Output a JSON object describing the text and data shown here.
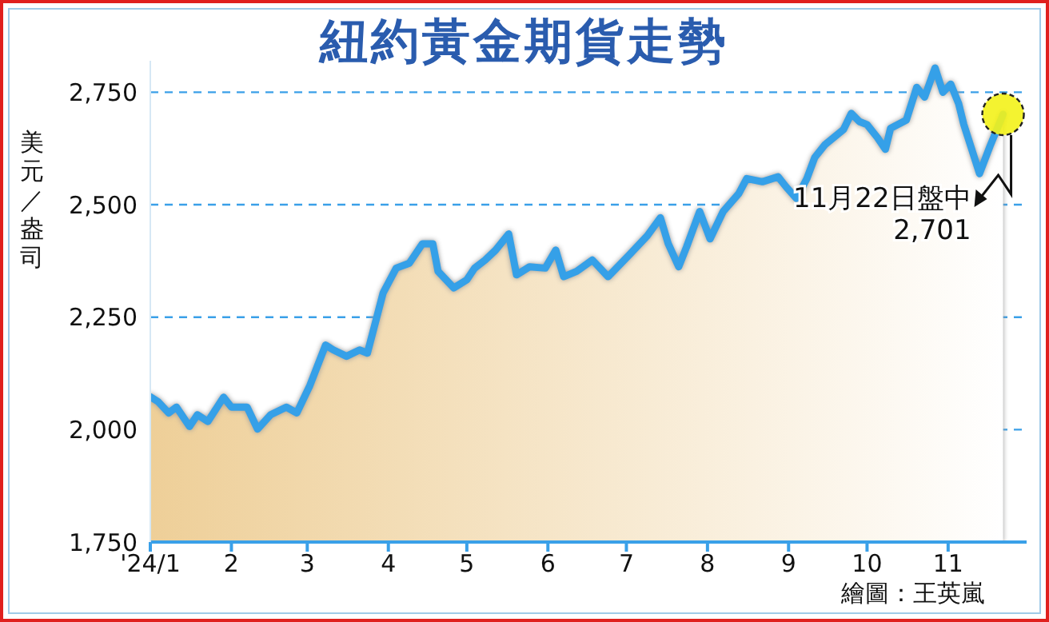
{
  "chart_data": {
    "type": "area",
    "title": "紐約黃金期貨走勢",
    "ylabel": "美元／盎司",
    "x": [
      "2024-01-01",
      "2024-01-04",
      "2024-01-08",
      "2024-01-11",
      "2024-01-16",
      "2024-01-19",
      "2024-01-23",
      "2024-01-29",
      "2024-02-01",
      "2024-02-07",
      "2024-02-11",
      "2024-02-16",
      "2024-02-22",
      "2024-02-26",
      "2024-03-02",
      "2024-03-08",
      "2024-03-11",
      "2024-03-16",
      "2024-03-21",
      "2024-03-24",
      "2024-03-30",
      "2024-04-04",
      "2024-04-09",
      "2024-04-14",
      "2024-04-18",
      "2024-04-20",
      "2024-04-26",
      "2024-05-01",
      "2024-05-04",
      "2024-05-08",
      "2024-05-12",
      "2024-05-17",
      "2024-05-20",
      "2024-05-25",
      "2024-05-31",
      "2024-06-04",
      "2024-06-07",
      "2024-06-12",
      "2024-06-18",
      "2024-06-24",
      "2024-07-02",
      "2024-07-09",
      "2024-07-14",
      "2024-07-17",
      "2024-07-21",
      "2024-07-24",
      "2024-07-29",
      "2024-08-02",
      "2024-08-07",
      "2024-08-13",
      "2024-08-16",
      "2024-08-22",
      "2024-08-28",
      "2024-08-31",
      "2024-09-04",
      "2024-09-08",
      "2024-09-11",
      "2024-09-15",
      "2024-09-22",
      "2024-09-25",
      "2024-09-28",
      "2024-10-01",
      "2024-10-05",
      "2024-10-08",
      "2024-10-10",
      "2024-10-16",
      "2024-10-20",
      "2024-10-23",
      "2024-10-27",
      "2024-10-30",
      "2024-11-02",
      "2024-11-05",
      "2024-11-07",
      "2024-11-13",
      "2024-11-17",
      "2024-11-22"
    ],
    "series": [
      {
        "color": "#35a0e8",
        "values": [
          2073,
          2062,
          2037,
          2050,
          2007,
          2033,
          2018,
          2072,
          2050,
          2050,
          2001,
          2033,
          2050,
          2037,
          2098,
          2188,
          2177,
          2163,
          2177,
          2170,
          2304,
          2359,
          2370,
          2413,
          2413,
          2352,
          2315,
          2333,
          2359,
          2377,
          2399,
          2435,
          2344,
          2362,
          2359,
          2399,
          2340,
          2352,
          2377,
          2340,
          2388,
          2431,
          2471,
          2413,
          2362,
          2406,
          2485,
          2424,
          2485,
          2525,
          2558,
          2551,
          2562,
          2540,
          2514,
          2558,
          2605,
          2634,
          2667,
          2703,
          2685,
          2678,
          2649,
          2623,
          2670,
          2688,
          2761,
          2739,
          2804,
          2750,
          2768,
          2725,
          2678,
          2569,
          2630,
          2701
        ]
      }
    ],
    "xlim": [
      "2024-01-01",
      "2024-12-01"
    ],
    "xticks": [
      {
        "value": "2024-01-01",
        "label": "'24/1"
      },
      {
        "value": "2024-02-01",
        "label": "2"
      },
      {
        "value": "2024-03-01",
        "label": "3"
      },
      {
        "value": "2024-04-01",
        "label": "4"
      },
      {
        "value": "2024-05-01",
        "label": "5"
      },
      {
        "value": "2024-06-01",
        "label": "6"
      },
      {
        "value": "2024-07-01",
        "label": "7"
      },
      {
        "value": "2024-08-01",
        "label": "8"
      },
      {
        "value": "2024-09-01",
        "label": "9"
      },
      {
        "value": "2024-10-01",
        "label": "10"
      },
      {
        "value": "2024-11-01",
        "label": "11"
      }
    ],
    "ylim": [
      1750,
      2820
    ],
    "yticks": [
      {
        "value": 1750,
        "label": "1,750"
      },
      {
        "value": 2000,
        "label": "2,000"
      },
      {
        "value": 2250,
        "label": "2,250"
      },
      {
        "value": 2500,
        "label": "2,500"
      },
      {
        "value": 2750,
        "label": "2,750"
      }
    ],
    "grid": "y",
    "annotations": [
      {
        "text": "11月22日盤中\n2,701",
        "x": "2024-11-22",
        "y": 2701
      },
      "繪圖：王英嵐"
    ]
  }
}
